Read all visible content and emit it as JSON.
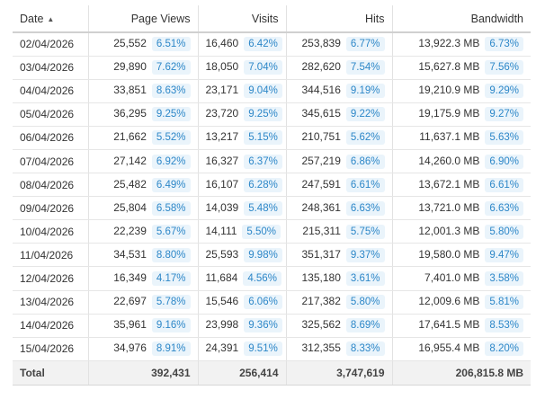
{
  "table": {
    "columns": [
      {
        "key": "date",
        "label": "Date",
        "sorted": "ascending"
      },
      {
        "key": "page_views",
        "label": "Page Views"
      },
      {
        "key": "visits",
        "label": "Visits"
      },
      {
        "key": "hits",
        "label": "Hits"
      },
      {
        "key": "bandwidth",
        "label": "Bandwidth"
      }
    ],
    "sort_icon": "sort-ascending-icon",
    "badge_color": "#2d87c8",
    "badge_background": "#eaf4fb",
    "rows": [
      {
        "date": "02/04/2026",
        "page_views": "25,552",
        "page_views_pct": "6.51%",
        "visits": "16,460",
        "visits_pct": "6.42%",
        "hits": "253,839",
        "hits_pct": "6.77%",
        "bandwidth": "13,922.3 MB",
        "bandwidth_pct": "6.73%"
      },
      {
        "date": "03/04/2026",
        "page_views": "29,890",
        "page_views_pct": "7.62%",
        "visits": "18,050",
        "visits_pct": "7.04%",
        "hits": "282,620",
        "hits_pct": "7.54%",
        "bandwidth": "15,627.8 MB",
        "bandwidth_pct": "7.56%"
      },
      {
        "date": "04/04/2026",
        "page_views": "33,851",
        "page_views_pct": "8.63%",
        "visits": "23,171",
        "visits_pct": "9.04%",
        "hits": "344,516",
        "hits_pct": "9.19%",
        "bandwidth": "19,210.9 MB",
        "bandwidth_pct": "9.29%"
      },
      {
        "date": "05/04/2026",
        "page_views": "36,295",
        "page_views_pct": "9.25%",
        "visits": "23,720",
        "visits_pct": "9.25%",
        "hits": "345,615",
        "hits_pct": "9.22%",
        "bandwidth": "19,175.9 MB",
        "bandwidth_pct": "9.27%"
      },
      {
        "date": "06/04/2026",
        "page_views": "21,662",
        "page_views_pct": "5.52%",
        "visits": "13,217",
        "visits_pct": "5.15%",
        "hits": "210,751",
        "hits_pct": "5.62%",
        "bandwidth": "11,637.1 MB",
        "bandwidth_pct": "5.63%"
      },
      {
        "date": "07/04/2026",
        "page_views": "27,142",
        "page_views_pct": "6.92%",
        "visits": "16,327",
        "visits_pct": "6.37%",
        "hits": "257,219",
        "hits_pct": "6.86%",
        "bandwidth": "14,260.0 MB",
        "bandwidth_pct": "6.90%"
      },
      {
        "date": "08/04/2026",
        "page_views": "25,482",
        "page_views_pct": "6.49%",
        "visits": "16,107",
        "visits_pct": "6.28%",
        "hits": "247,591",
        "hits_pct": "6.61%",
        "bandwidth": "13,672.1 MB",
        "bandwidth_pct": "6.61%"
      },
      {
        "date": "09/04/2026",
        "page_views": "25,804",
        "page_views_pct": "6.58%",
        "visits": "14,039",
        "visits_pct": "5.48%",
        "hits": "248,361",
        "hits_pct": "6.63%",
        "bandwidth": "13,721.0 MB",
        "bandwidth_pct": "6.63%"
      },
      {
        "date": "10/04/2026",
        "page_views": "22,239",
        "page_views_pct": "5.67%",
        "visits": "14,111",
        "visits_pct": "5.50%",
        "hits": "215,311",
        "hits_pct": "5.75%",
        "bandwidth": "12,001.3 MB",
        "bandwidth_pct": "5.80%"
      },
      {
        "date": "11/04/2026",
        "page_views": "34,531",
        "page_views_pct": "8.80%",
        "visits": "25,593",
        "visits_pct": "9.98%",
        "hits": "351,317",
        "hits_pct": "9.37%",
        "bandwidth": "19,580.0 MB",
        "bandwidth_pct": "9.47%"
      },
      {
        "date": "12/04/2026",
        "page_views": "16,349",
        "page_views_pct": "4.17%",
        "visits": "11,684",
        "visits_pct": "4.56%",
        "hits": "135,180",
        "hits_pct": "3.61%",
        "bandwidth": "7,401.0 MB",
        "bandwidth_pct": "3.58%"
      },
      {
        "date": "13/04/2026",
        "page_views": "22,697",
        "page_views_pct": "5.78%",
        "visits": "15,546",
        "visits_pct": "6.06%",
        "hits": "217,382",
        "hits_pct": "5.80%",
        "bandwidth": "12,009.6 MB",
        "bandwidth_pct": "5.81%"
      },
      {
        "date": "14/04/2026",
        "page_views": "35,961",
        "page_views_pct": "9.16%",
        "visits": "23,998",
        "visits_pct": "9.36%",
        "hits": "325,562",
        "hits_pct": "8.69%",
        "bandwidth": "17,641.5 MB",
        "bandwidth_pct": "8.53%"
      },
      {
        "date": "15/04/2026",
        "page_views": "34,976",
        "page_views_pct": "8.91%",
        "visits": "24,391",
        "visits_pct": "9.51%",
        "hits": "312,355",
        "hits_pct": "8.33%",
        "bandwidth": "16,955.4 MB",
        "bandwidth_pct": "8.20%"
      }
    ],
    "totals": {
      "label": "Total",
      "page_views": "392,431",
      "visits": "256,414",
      "hits": "3,747,619",
      "bandwidth": "206,815.8 MB"
    }
  }
}
